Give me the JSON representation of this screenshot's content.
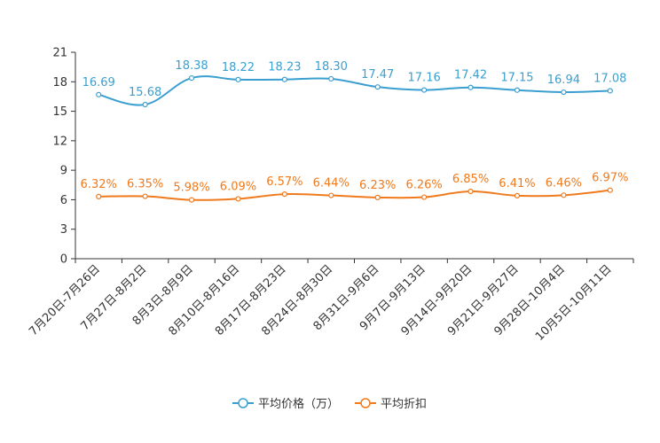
{
  "chart_data": {
    "type": "line",
    "categories": [
      "7月20日-7月26日",
      "7月27日-8月2日",
      "8月3日-8月9日",
      "8月10日-8月16日",
      "8月17日-8月23日",
      "8月24日-8月30日",
      "8月31日-9月6日",
      "9月7日-9月13日",
      "9月14日-9月20日",
      "9月21日-9月27日",
      "9月28日-10月4日",
      "10月5日-10月11日"
    ],
    "series": [
      {
        "name": "平均价格（万）",
        "color": "#3a9fd0",
        "values": [
          16.69,
          15.68,
          18.38,
          18.22,
          18.23,
          18.3,
          17.47,
          17.16,
          17.42,
          17.15,
          16.94,
          17.08
        ],
        "labels": [
          "16.69",
          "15.68",
          "18.38",
          "18.22",
          "18.23",
          "18.30",
          "17.47",
          "17.16",
          "17.42",
          "17.15",
          "16.94",
          "17.08"
        ]
      },
      {
        "name": "平均折扣",
        "color": "#f07a1c",
        "values": [
          6.32,
          6.35,
          5.98,
          6.09,
          6.57,
          6.44,
          6.23,
          6.26,
          6.85,
          6.41,
          6.46,
          6.97
        ],
        "labels": [
          "6.32%",
          "6.35%",
          "5.98%",
          "6.09%",
          "6.57%",
          "6.44%",
          "6.23%",
          "6.26%",
          "6.85%",
          "6.41%",
          "6.46%",
          "6.97%"
        ]
      }
    ],
    "yticks": [
      "0",
      "3",
      "6",
      "9",
      "12",
      "15",
      "18",
      "21"
    ],
    "ylim": [
      0,
      21
    ],
    "title": "",
    "xlabel": "",
    "ylabel": "",
    "grid": false,
    "legend_position": "bottom-center"
  }
}
